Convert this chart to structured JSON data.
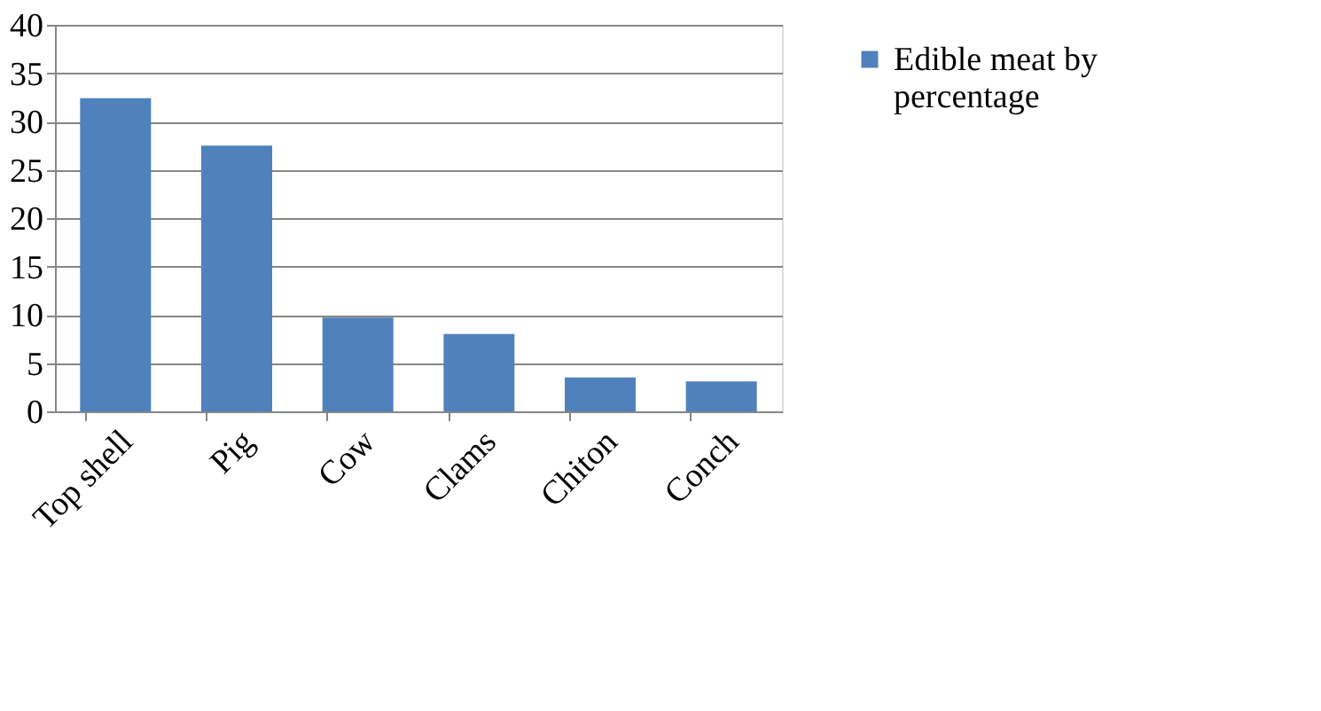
{
  "chart_data": {
    "type": "bar",
    "categories": [
      "Top shell",
      "Pig",
      "Cow",
      "Clams",
      "Chiton",
      "Conch"
    ],
    "series": [
      {
        "name": "Edible meat by percentage",
        "color": "#4f81bd",
        "values": [
          32.4,
          27.5,
          9.7,
          8.0,
          3.5,
          3.1
        ]
      }
    ],
    "ylim": [
      0,
      40
    ],
    "yticks": [
      0,
      5,
      10,
      15,
      20,
      25,
      30,
      35,
      40
    ],
    "grid": "y",
    "legend": "right"
  }
}
